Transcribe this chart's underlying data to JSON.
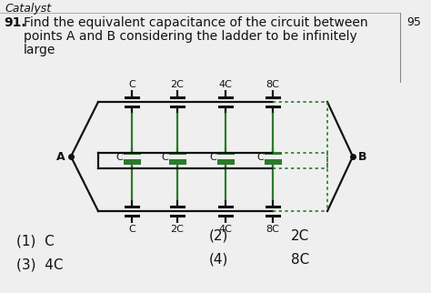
{
  "title_line1": "Find the equivalent capacitance of the circuit between",
  "title_line2": "points A and B considering the ladder to be infinitely",
  "title_line3": "large",
  "question_num": "91.",
  "bg_color": "#efefef",
  "text_color": "#111111",
  "circuit_color": "#111111",
  "dotted_color": "#2d7a2d",
  "green_cap_color": "#2d7a2d",
  "cap_labels_top": [
    "C",
    "2C",
    "4C",
    "8C"
  ],
  "cap_labels_bot": [
    "C",
    "2C",
    "4C",
    "8C"
  ],
  "cap_labels_mid": [
    "C",
    "C",
    "C",
    "C"
  ],
  "options_left": [
    "(1)  C",
    "(3)  4C"
  ],
  "options_mid": [
    "(2)",
    "(4)"
  ],
  "options_right": [
    "2C",
    "8C"
  ],
  "font_size_title": 10,
  "font_size_options": 11,
  "font_size_circuit": 8,
  "side_num": "95"
}
